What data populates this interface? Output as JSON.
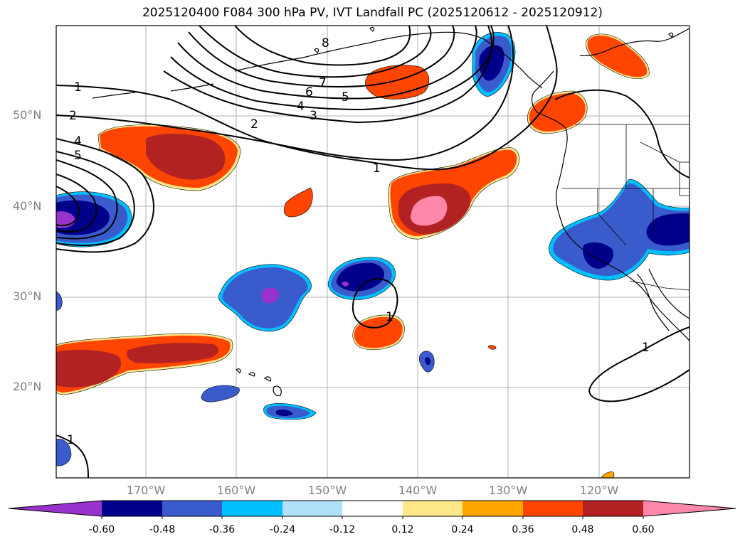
{
  "title": "2025120400 F084 300 hPa PV, IVT Landfall PC (2025120612 - 2025120912)",
  "lat_ticks": [
    "50°N",
    "40°N",
    "30°N",
    "20°N"
  ],
  "lon_ticks": [
    "170°W",
    "160°W",
    "150°W",
    "140°W",
    "130°W",
    "120°W"
  ],
  "contour_labels": [
    "1",
    "2",
    "4",
    "5",
    "2",
    "3",
    "4",
    "5",
    "6",
    "7",
    "8",
    "1",
    "1",
    "1",
    "1"
  ],
  "colorbar": {
    "colors": [
      "#9932cc",
      "#00008b",
      "#3a5bcc",
      "#00bfff",
      "#b0e0fa",
      "#ffffff",
      "#ffe88a",
      "#ffa500",
      "#ff4500",
      "#b22222",
      "#ff88aa"
    ],
    "tick_labels": [
      "-0.60",
      "-0.48",
      "-0.36",
      "-0.24",
      "-0.12",
      "0.12",
      "0.24",
      "0.36",
      "0.48",
      "0.60"
    ]
  }
}
